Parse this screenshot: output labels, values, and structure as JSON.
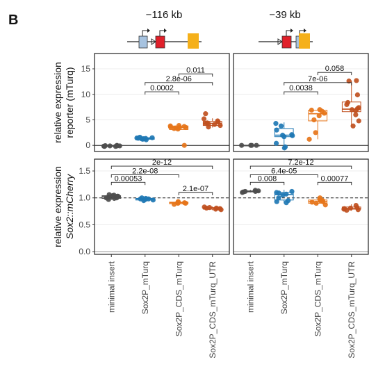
{
  "panel_letter": "B",
  "chart_data": {
    "type": "box",
    "categories": [
      "minimal insert",
      "Sox2P_mTurq",
      "Sox2P_CDS_mTurq",
      "Sox2P_CDS_mTurq_UTR"
    ],
    "colors": {
      "minimal insert": "#4d4d4d",
      "Sox2P_mTurq": "#1f78b4",
      "Sox2P_CDS_mTurq": "#e6751a",
      "Sox2P_CDS_mTurq_UTR": "#c0501f"
    },
    "columns": [
      {
        "title": "−116 kb"
      },
      {
        "title": "−39 kb"
      }
    ],
    "rows": [
      {
        "ylabel_line1": "relative expression",
        "ylabel_line2": "reporter (mTurq)",
        "ylabel_italic": false,
        "ylim": [
          -1.2,
          18
        ],
        "yticks": [
          0,
          5,
          10,
          15
        ],
        "tick_labels": [
          "0",
          "5",
          "10",
          "15"
        ],
        "hline": 0,
        "hline_dashed": false
      },
      {
        "ylabel_line1": "relative expression",
        "ylabel_line2": "Sox2::mCherry",
        "ylabel_italic": true,
        "ylim": [
          -0.05,
          1.72
        ],
        "yticks": [
          0.0,
          0.5,
          1.0,
          1.5
        ],
        "tick_labels": [
          "0.0",
          "0.5",
          "1.0",
          "1.5"
        ],
        "hline": 1.0,
        "hline_dashed": true
      }
    ],
    "panels": [
      {
        "row": 0,
        "col": 0,
        "groups": [
          {
            "q1": -0.2,
            "median": -0.1,
            "q3": 0.0,
            "whisker_low": -0.3,
            "whisker_high": 0.1,
            "points": [
              -0.2,
              -0.15,
              -0.1,
              -0.1,
              -0.05,
              0.0,
              -0.2,
              -0.1
            ]
          },
          {
            "q1": 1.2,
            "median": 1.35,
            "q3": 1.5,
            "whisker_low": 1.0,
            "whisker_high": 1.7,
            "points": [
              1.1,
              1.2,
              1.3,
              1.35,
              1.4,
              1.45,
              1.5,
              1.6,
              1.3
            ]
          },
          {
            "q1": 3.1,
            "median": 3.5,
            "q3": 3.8,
            "whisker_low": 2.8,
            "whisker_high": 4.0,
            "points": [
              3.2,
              3.4,
              3.5,
              3.6,
              3.7,
              3.8,
              3.5,
              3.3,
              3.9,
              0.0
            ]
          },
          {
            "q1": 3.9,
            "median": 4.3,
            "q3": 4.7,
            "whisker_low": 3.5,
            "whisker_high": 5.3,
            "points": [
              3.6,
              3.9,
              4.1,
              4.3,
              4.4,
              4.6,
              4.8,
              5.2,
              6.2,
              4.2
            ]
          }
        ],
        "comparisons": [
          {
            "from": 2,
            "to": 3,
            "y": 14.0,
            "label": "0.011"
          },
          {
            "from": 1,
            "to": 3,
            "y": 12.3,
            "label": "2.8e-06"
          },
          {
            "from": 1,
            "to": 2,
            "y": 10.5,
            "label": "0.0002"
          }
        ]
      },
      {
        "row": 0,
        "col": 1,
        "groups": [
          {
            "q1": 0.0,
            "median": 0.0,
            "q3": 0.0,
            "whisker_low": 0.0,
            "whisker_high": 0.0,
            "points": [
              0.0,
              0.0,
              0.0,
              0.0
            ]
          },
          {
            "q1": 1.7,
            "median": 2.0,
            "q3": 3.3,
            "whisker_low": -0.6,
            "whisker_high": 4.5,
            "points": [
              -0.5,
              -0.3,
              0.4,
              1.7,
              1.9,
              2.0,
              2.1,
              3.0,
              3.8,
              4.3
            ]
          },
          {
            "q1": 4.8,
            "median": 6.2,
            "q3": 6.9,
            "whisker_low": 1.2,
            "whisker_high": 7.1,
            "points": [
              1.2,
              2.5,
              5.0,
              5.8,
              6.3,
              6.7,
              6.9,
              7.0
            ]
          },
          {
            "q1": 6.6,
            "median": 7.1,
            "q3": 8.5,
            "whisker_low": 3.7,
            "whisker_high": 12.7,
            "points": [
              3.8,
              4.8,
              6.0,
              6.8,
              7.0,
              7.2,
              7.4,
              8.0,
              8.4,
              9.9,
              12.6,
              12.7
            ]
          }
        ],
        "comparisons": [
          {
            "from": 2,
            "to": 3,
            "y": 14.3,
            "label": "0.058"
          },
          {
            "from": 1,
            "to": 3,
            "y": 12.3,
            "label": "7e-06"
          },
          {
            "from": 1,
            "to": 2,
            "y": 10.5,
            "label": "0.0038"
          }
        ]
      },
      {
        "row": 1,
        "col": 0,
        "groups": [
          {
            "q1": 0.99,
            "median": 1.02,
            "q3": 1.04,
            "whisker_low": 0.96,
            "whisker_high": 1.07,
            "points": [
              0.97,
              0.99,
              1.0,
              1.01,
              1.02,
              1.03,
              1.04,
              1.05,
              1.06,
              1.0,
              1.03
            ]
          },
          {
            "q1": 0.96,
            "median": 0.98,
            "q3": 0.99,
            "whisker_low": 0.94,
            "whisker_high": 1.01,
            "points": [
              0.95,
              0.96,
              0.97,
              0.98,
              0.99,
              1.0,
              0.98,
              0.97
            ]
          },
          {
            "q1": 0.89,
            "median": 0.91,
            "q3": 0.92,
            "whisker_low": 0.87,
            "whisker_high": 0.94,
            "points": [
              0.88,
              0.9,
              0.91,
              0.92,
              0.93,
              0.9,
              0.91
            ]
          },
          {
            "q1": 0.79,
            "median": 0.81,
            "q3": 0.82,
            "whisker_low": 0.77,
            "whisker_high": 0.84,
            "points": [
              0.78,
              0.8,
              0.81,
              0.82,
              0.83,
              0.79,
              0.81
            ]
          }
        ],
        "comparisons": [
          {
            "from": 0,
            "to": 3,
            "y": 1.59,
            "label": "2e-12"
          },
          {
            "from": 0,
            "to": 2,
            "y": 1.43,
            "label": "2.2e-08"
          },
          {
            "from": 0,
            "to": 1,
            "y": 1.29,
            "label": "0.00053"
          },
          {
            "from": 2,
            "to": 3,
            "y": 1.1,
            "label": "2.1e-07"
          }
        ]
      },
      {
        "row": 1,
        "col": 1,
        "groups": [
          {
            "q1": 1.11,
            "median": 1.12,
            "q3": 1.13,
            "whisker_low": 1.1,
            "whisker_high": 1.15,
            "points": [
              1.1,
              1.11,
              1.12,
              1.13,
              1.14,
              1.12
            ]
          },
          {
            "q1": 0.96,
            "median": 1.06,
            "q3": 1.1,
            "whisker_low": 0.9,
            "whisker_high": 1.15,
            "points": [
              0.91,
              0.93,
              1.0,
              1.05,
              1.07,
              1.09,
              1.1,
              1.12,
              0.95
            ]
          },
          {
            "q1": 0.9,
            "median": 0.93,
            "q3": 0.96,
            "whisker_low": 0.86,
            "whisker_high": 1.0,
            "points": [
              0.87,
              0.9,
              0.92,
              0.93,
              0.95,
              0.97,
              1.0,
              0.94
            ]
          },
          {
            "q1": 0.79,
            "median": 0.8,
            "q3": 0.83,
            "whisker_low": 0.76,
            "whisker_high": 0.88,
            "points": [
              0.77,
              0.78,
              0.8,
              0.81,
              0.82,
              0.79,
              0.86
            ]
          }
        ],
        "comparisons": [
          {
            "from": 0,
            "to": 3,
            "y": 1.59,
            "label": "7.2e-12"
          },
          {
            "from": 0,
            "to": 2,
            "y": 1.43,
            "label": "6.4e-05"
          },
          {
            "from": 0,
            "to": 1,
            "y": 1.29,
            "label": "0.008"
          },
          {
            "from": 2,
            "to": 3,
            "y": 1.29,
            "label": "0.00077"
          }
        ]
      }
    ]
  }
}
